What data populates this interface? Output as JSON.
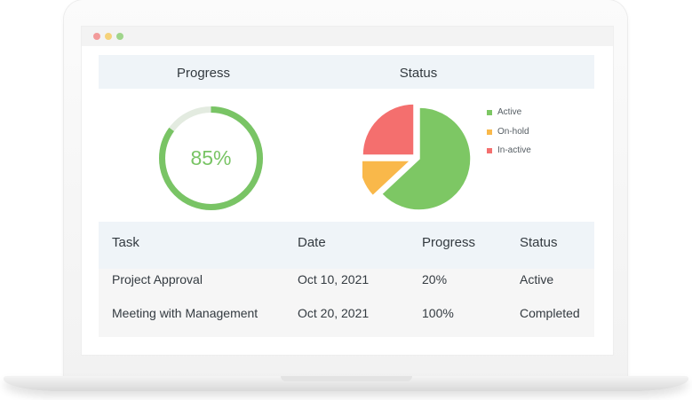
{
  "window": {
    "controls": [
      "close",
      "minimize",
      "maximize"
    ]
  },
  "progress_panel": {
    "title": "Progress",
    "value_label": "85%",
    "fraction": 0.85,
    "ring_color": "#79c465",
    "track_color": "#e3ebe0"
  },
  "status_panel": {
    "title": "Status",
    "legend": [
      {
        "label": "Active",
        "color": "#7dc764"
      },
      {
        "label": "On-hold",
        "color": "#f9b84a"
      },
      {
        "label": "In-active",
        "color": "#f46f6e"
      }
    ]
  },
  "chart_data": {
    "type": "pie",
    "title": "Status",
    "slices": [
      {
        "label": "Active",
        "value": 63,
        "color": "#7dc764"
      },
      {
        "label": "On-hold",
        "value": 12,
        "color": "#f9b84a"
      },
      {
        "label": "In-active",
        "value": 25,
        "color": "#f46f6e"
      }
    ],
    "legend_position": "right"
  },
  "table": {
    "headers": [
      "Task",
      "Date",
      "Progress",
      "Status"
    ],
    "rows": [
      [
        "Project Approval",
        "Oct 10, 2021",
        "20%",
        "Active"
      ],
      [
        "Meeting with Management",
        "Oct 20, 2021",
        "100%",
        "Completed"
      ]
    ]
  }
}
